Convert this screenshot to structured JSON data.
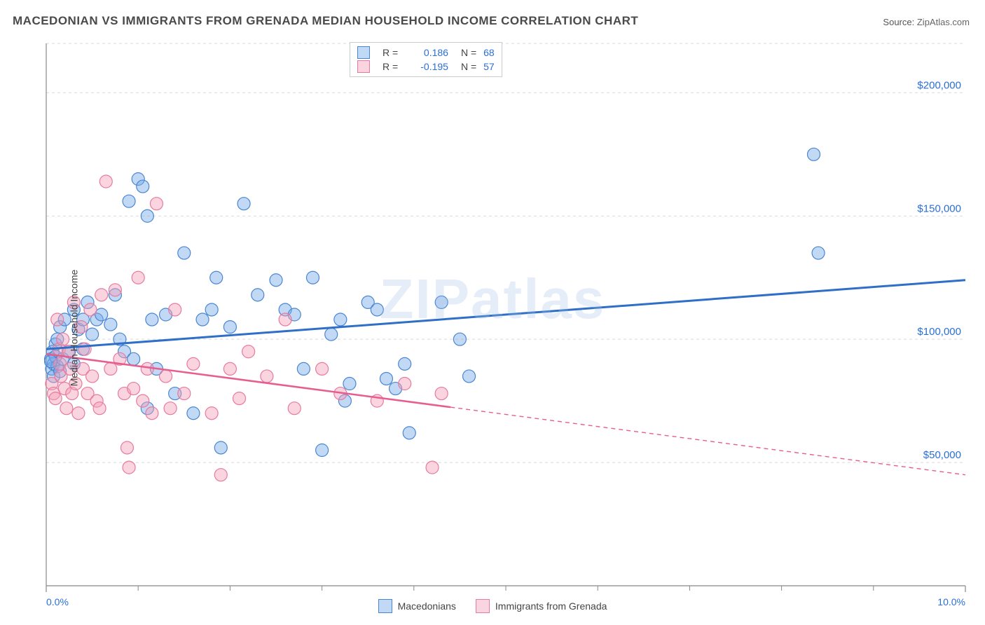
{
  "title": "MACEDONIAN VS IMMIGRANTS FROM GRENADA MEDIAN HOUSEHOLD INCOME CORRELATION CHART",
  "source_label": "Source:",
  "source_value": "ZipAtlas.com",
  "watermark": "ZIPatlas",
  "ylabel": "Median Household Income",
  "chart": {
    "type": "scatter",
    "xlim": [
      0,
      10
    ],
    "ylim": [
      0,
      220000
    ],
    "x_ticks": [
      0,
      10
    ],
    "x_tick_labels": [
      "0.0%",
      "10.0%"
    ],
    "y_ticks": [
      50000,
      100000,
      150000,
      200000
    ],
    "y_tick_labels": [
      "$50,000",
      "$100,000",
      "$150,000",
      "$200,000"
    ],
    "minor_x_ticks": [
      1,
      2,
      3,
      4,
      5,
      6,
      7,
      8,
      9
    ],
    "grid_color": "#d9d9d9",
    "axis_color": "#888888",
    "tick_label_color": "#2a6fd6",
    "background_color": "#ffffff",
    "marker_radius": 9,
    "marker_stroke_width": 1.2,
    "series": [
      {
        "id": "macedonians",
        "label": "Macedonians",
        "fill": "rgba(120,170,235,0.45)",
        "stroke": "#4a86d0",
        "R": "0.186",
        "N": "68",
        "trend": {
          "y_at_x0": 96000,
          "y_at_x10": 124000,
          "solid_end_x": 10
        },
        "line_color": "#2f6fc7",
        "line_width": 3,
        "points": [
          [
            0.05,
            92000
          ],
          [
            0.06,
            88000
          ],
          [
            0.07,
            95000
          ],
          [
            0.08,
            85000
          ],
          [
            0.08,
            90000
          ],
          [
            0.1,
            93000
          ],
          [
            0.1,
            98000
          ],
          [
            0.12,
            89000
          ],
          [
            0.12,
            100000
          ],
          [
            0.15,
            87000
          ],
          [
            0.15,
            105000
          ],
          [
            0.18,
            92000
          ],
          [
            0.2,
            108000
          ],
          [
            0.25,
            95000
          ],
          [
            0.3,
            112000
          ],
          [
            0.3,
            90000
          ],
          [
            0.35,
            104000
          ],
          [
            0.4,
            108000
          ],
          [
            0.4,
            96000
          ],
          [
            0.45,
            115000
          ],
          [
            0.5,
            102000
          ],
          [
            0.55,
            108000
          ],
          [
            0.6,
            110000
          ],
          [
            0.7,
            106000
          ],
          [
            0.75,
            118000
          ],
          [
            0.8,
            100000
          ],
          [
            0.85,
            95000
          ],
          [
            0.9,
            156000
          ],
          [
            0.95,
            92000
          ],
          [
            1.0,
            165000
          ],
          [
            1.05,
            162000
          ],
          [
            1.1,
            150000
          ],
          [
            1.1,
            72000
          ],
          [
            1.15,
            108000
          ],
          [
            1.2,
            88000
          ],
          [
            1.3,
            110000
          ],
          [
            1.4,
            78000
          ],
          [
            1.5,
            135000
          ],
          [
            1.6,
            70000
          ],
          [
            1.7,
            108000
          ],
          [
            1.8,
            112000
          ],
          [
            1.85,
            125000
          ],
          [
            1.9,
            56000
          ],
          [
            2.0,
            105000
          ],
          [
            2.15,
            155000
          ],
          [
            2.3,
            118000
          ],
          [
            2.5,
            124000
          ],
          [
            2.6,
            112000
          ],
          [
            2.7,
            110000
          ],
          [
            2.8,
            88000
          ],
          [
            2.9,
            125000
          ],
          [
            3.0,
            55000
          ],
          [
            3.1,
            102000
          ],
          [
            3.2,
            108000
          ],
          [
            3.25,
            75000
          ],
          [
            3.3,
            82000
          ],
          [
            3.5,
            115000
          ],
          [
            3.6,
            112000
          ],
          [
            3.7,
            84000
          ],
          [
            3.8,
            80000
          ],
          [
            3.9,
            90000
          ],
          [
            3.95,
            62000
          ],
          [
            4.3,
            115000
          ],
          [
            4.5,
            100000
          ],
          [
            4.6,
            85000
          ],
          [
            8.4,
            135000
          ],
          [
            8.35,
            175000
          ],
          [
            0.05,
            91000
          ]
        ]
      },
      {
        "id": "grenada",
        "label": "Immigrants from Grenada",
        "fill": "rgba(245,160,185,0.45)",
        "stroke": "#e77aa0",
        "R": "-0.195",
        "N": "57",
        "trend": {
          "y_at_x0": 94000,
          "y_at_x10": 45000,
          "solid_end_x": 4.4
        },
        "line_color": "#e85d8f",
        "line_width": 2.5,
        "points": [
          [
            0.06,
            82000
          ],
          [
            0.08,
            78000
          ],
          [
            0.1,
            76000
          ],
          [
            0.12,
            108000
          ],
          [
            0.14,
            96000
          ],
          [
            0.15,
            90000
          ],
          [
            0.16,
            85000
          ],
          [
            0.18,
            100000
          ],
          [
            0.2,
            80000
          ],
          [
            0.22,
            72000
          ],
          [
            0.24,
            95000
          ],
          [
            0.26,
            88000
          ],
          [
            0.28,
            78000
          ],
          [
            0.3,
            115000
          ],
          [
            0.32,
            82000
          ],
          [
            0.35,
            70000
          ],
          [
            0.38,
            105000
          ],
          [
            0.4,
            88000
          ],
          [
            0.42,
            96000
          ],
          [
            0.45,
            78000
          ],
          [
            0.48,
            112000
          ],
          [
            0.5,
            85000
          ],
          [
            0.55,
            75000
          ],
          [
            0.58,
            72000
          ],
          [
            0.6,
            118000
          ],
          [
            0.65,
            164000
          ],
          [
            0.7,
            88000
          ],
          [
            0.75,
            120000
          ],
          [
            0.8,
            92000
          ],
          [
            0.85,
            78000
          ],
          [
            0.88,
            56000
          ],
          [
            0.9,
            48000
          ],
          [
            0.95,
            80000
          ],
          [
            1.0,
            125000
          ],
          [
            1.05,
            75000
          ],
          [
            1.1,
            88000
          ],
          [
            1.15,
            70000
          ],
          [
            1.2,
            155000
          ],
          [
            1.3,
            85000
          ],
          [
            1.35,
            72000
          ],
          [
            1.4,
            112000
          ],
          [
            1.5,
            78000
          ],
          [
            1.6,
            90000
          ],
          [
            1.8,
            70000
          ],
          [
            1.9,
            45000
          ],
          [
            2.0,
            88000
          ],
          [
            2.1,
            76000
          ],
          [
            2.2,
            95000
          ],
          [
            2.4,
            85000
          ],
          [
            2.6,
            108000
          ],
          [
            2.7,
            72000
          ],
          [
            3.0,
            88000
          ],
          [
            3.2,
            78000
          ],
          [
            3.6,
            75000
          ],
          [
            3.9,
            82000
          ],
          [
            4.2,
            48000
          ],
          [
            4.3,
            78000
          ]
        ]
      }
    ]
  },
  "legend_top": {
    "R_label": "R =",
    "N_label": "N ="
  }
}
